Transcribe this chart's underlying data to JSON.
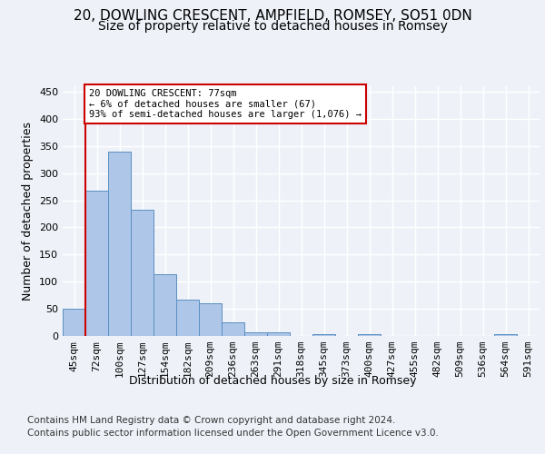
{
  "title_line1": "20, DOWLING CRESCENT, AMPFIELD, ROMSEY, SO51 0DN",
  "title_line2": "Size of property relative to detached houses in Romsey",
  "xlabel": "Distribution of detached houses by size in Romsey",
  "ylabel": "Number of detached properties",
  "categories": [
    "45sqm",
    "72sqm",
    "100sqm",
    "127sqm",
    "154sqm",
    "182sqm",
    "209sqm",
    "236sqm",
    "263sqm",
    "291sqm",
    "318sqm",
    "345sqm",
    "373sqm",
    "400sqm",
    "427sqm",
    "455sqm",
    "482sqm",
    "509sqm",
    "536sqm",
    "564sqm",
    "591sqm"
  ],
  "values": [
    50,
    267,
    340,
    233,
    113,
    67,
    61,
    25,
    6,
    6,
    0,
    4,
    0,
    4,
    0,
    0,
    0,
    0,
    0,
    4,
    0
  ],
  "bar_color": "#aec6e8",
  "bar_edge_color": "#5a8fc2",
  "property_line_color": "#cc0000",
  "annotation_text": "20 DOWLING CRESCENT: 77sqm\n← 6% of detached houses are smaller (67)\n93% of semi-detached houses are larger (1,076) →",
  "annotation_box_color": "#cc0000",
  "ylim": [
    0,
    460
  ],
  "yticks": [
    0,
    50,
    100,
    150,
    200,
    250,
    300,
    350,
    400,
    450
  ],
  "footer_line1": "Contains HM Land Registry data © Crown copyright and database right 2024.",
  "footer_line2": "Contains public sector information licensed under the Open Government Licence v3.0.",
  "background_color": "#eef2f8",
  "plot_bg_color": "#eef2f8",
  "grid_color": "#ffffff",
  "title_fontsize": 11,
  "subtitle_fontsize": 10,
  "axis_label_fontsize": 9,
  "tick_fontsize": 8,
  "footer_fontsize": 7.5
}
